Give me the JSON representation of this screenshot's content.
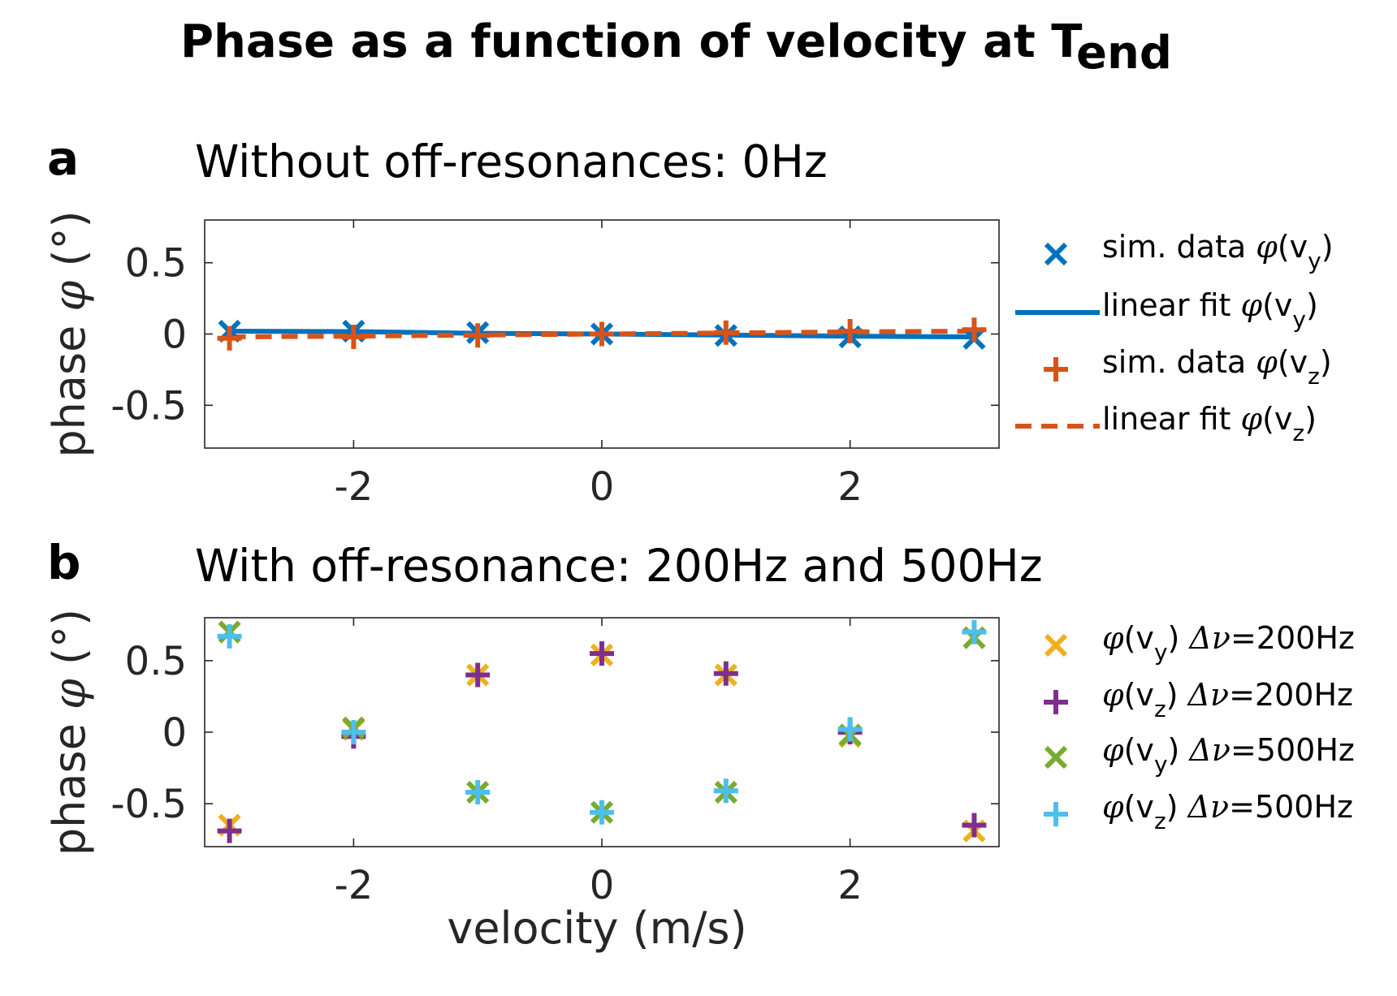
{
  "figure": {
    "title_main": "Phase as a function of velocity at T",
    "title_sub": "end",
    "xlabel": "velocity (m/s)"
  },
  "chart_data": [
    {
      "id": "a",
      "type": "scatter",
      "panel_letter": "a",
      "title": "Without off-resonances: 0Hz",
      "ylabel_text": "phase ",
      "ylabel_symbol": "φ",
      "ylabel_unit": " (°)",
      "xlim": [
        -3.2,
        3.2
      ],
      "ylim": [
        -0.8,
        0.8
      ],
      "xticks": [
        -2,
        0,
        2
      ],
      "xtick_labels": [
        "-2",
        "0",
        "2"
      ],
      "yticks": [
        0.5,
        0,
        -0.5
      ],
      "ytick_labels": [
        "0.5",
        "0",
        "-0.5"
      ],
      "series": [
        {
          "name": "sim. data φ(v_y)",
          "label": "sim. data ",
          "sym": "φ",
          "var": "(v",
          "sub": "y",
          "close": ")",
          "kind": "x-marker",
          "color": "#0072BD",
          "x": [
            -3,
            -2,
            -1,
            0,
            1,
            2,
            3
          ],
          "y": [
            0.02,
            0.02,
            0.01,
            0.0,
            -0.01,
            -0.02,
            -0.03
          ]
        },
        {
          "name": "linear fit φ(v_y)",
          "label": "linear fit ",
          "sym": "φ",
          "var": "(v",
          "sub": "y",
          "close": ")",
          "kind": "solid-line",
          "color": "#0072BD",
          "x": [
            -3,
            -2,
            -1,
            0,
            1,
            2,
            3
          ],
          "y": [
            0.02,
            0.017,
            0.005,
            0.0,
            -0.007,
            -0.015,
            -0.02
          ]
        },
        {
          "name": "sim. data φ(v_z)",
          "label": "sim. data ",
          "sym": "φ",
          "var": "(v",
          "sub": "z",
          "close": ")",
          "kind": "plus-marker",
          "color": "#D95319",
          "x": [
            -3,
            -2,
            -1,
            0,
            1,
            2,
            3
          ],
          "y": [
            -0.03,
            -0.02,
            -0.01,
            0.0,
            0.01,
            0.02,
            0.03
          ]
        },
        {
          "name": "linear fit φ(v_z)",
          "label": "linear fit ",
          "sym": "φ",
          "var": "(v",
          "sub": "z",
          "close": ")",
          "kind": "dashed-line",
          "color": "#D95319",
          "x": [
            -3,
            -2,
            -1,
            0,
            1,
            2,
            3
          ],
          "y": [
            -0.02,
            -0.015,
            -0.007,
            0.0,
            0.007,
            0.015,
            0.02
          ]
        }
      ]
    },
    {
      "id": "b",
      "type": "scatter",
      "panel_letter": "b",
      "title": "With off-resonance: 200Hz and 500Hz",
      "ylabel_text": "phase ",
      "ylabel_symbol": "φ",
      "ylabel_unit": " (°)",
      "xlim": [
        -3.2,
        3.2
      ],
      "ylim": [
        -0.8,
        0.8
      ],
      "xticks": [
        -2,
        0,
        2
      ],
      "xtick_labels": [
        "-2",
        "0",
        "2"
      ],
      "yticks": [
        0.5,
        0,
        -0.5
      ],
      "ytick_labels": [
        "0.5",
        "0",
        "-0.5"
      ],
      "series": [
        {
          "name": "φ(v_y) Δν=200Hz",
          "label": "",
          "sym": "φ",
          "var": "(v",
          "sub": "y",
          "close": ") ",
          "delta": "Δν",
          "tail": "=200Hz",
          "kind": "x-marker",
          "color": "#EDB120",
          "x": [
            -3,
            -2,
            -1,
            0,
            1,
            2,
            3
          ],
          "y": [
            -0.65,
            0.02,
            0.4,
            0.54,
            0.4,
            -0.03,
            -0.69
          ]
        },
        {
          "name": "φ(v_z) Δν=200Hz",
          "label": "",
          "sym": "φ",
          "var": "(v",
          "sub": "z",
          "close": ") ",
          "delta": "Δν",
          "tail": "=200Hz",
          "kind": "plus-marker",
          "color": "#7E2F8E",
          "x": [
            -3,
            -2,
            -1,
            0,
            1,
            2,
            3
          ],
          "y": [
            -0.69,
            -0.03,
            0.4,
            0.55,
            0.41,
            0.0,
            -0.65
          ]
        },
        {
          "name": "φ(v_y) Δν=500Hz",
          "label": "",
          "sym": "φ",
          "var": "(v",
          "sub": "y",
          "close": ") ",
          "delta": "Δν",
          "tail": "=500Hz",
          "kind": "x-marker",
          "color": "#77AC30",
          "x": [
            -3,
            -2,
            -1,
            0,
            1,
            2,
            3
          ],
          "y": [
            0.7,
            0.03,
            -0.42,
            -0.56,
            -0.42,
            -0.02,
            0.66
          ]
        },
        {
          "name": "φ(v_z) Δν=500Hz",
          "label": "",
          "sym": "φ",
          "var": "(v",
          "sub": "z",
          "close": ") ",
          "delta": "Δν",
          "tail": "=500Hz",
          "kind": "plus-marker",
          "color": "#4DBEEE",
          "x": [
            -3,
            -2,
            -1,
            0,
            1,
            2,
            3
          ],
          "y": [
            0.67,
            0.0,
            -0.42,
            -0.56,
            -0.41,
            0.02,
            0.7
          ]
        }
      ]
    }
  ]
}
